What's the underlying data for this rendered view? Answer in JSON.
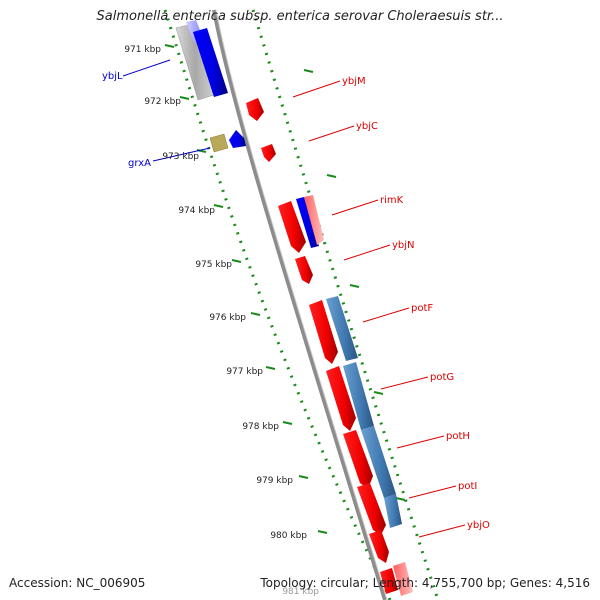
{
  "title": "Salmonella enterica subsp. enterica serovar Choleraesuis str...",
  "accession": "Accession: NC_006905",
  "summary": "Topology: circular; Length: 4,755,700 bp; Genes: 4,516",
  "colors": {
    "forward": "#ff0000",
    "reverse": "#0000ff",
    "feature": "#3f78b0",
    "backbone": "#8c8c8c",
    "ticks": "#1a8a1a",
    "other": "#b8a85a"
  },
  "scale": [
    {
      "label": "971 kbp",
      "kbp": 971
    },
    {
      "label": "972 kbp",
      "kbp": 972
    },
    {
      "label": "973 kbp",
      "kbp": 973
    },
    {
      "label": "974 kbp",
      "kbp": 974
    },
    {
      "label": "975 kbp",
      "kbp": 975
    },
    {
      "label": "976 kbp",
      "kbp": 976
    },
    {
      "label": "977 kbp",
      "kbp": 977
    },
    {
      "label": "978 kbp",
      "kbp": 978
    },
    {
      "label": "979 kbp",
      "kbp": 979
    },
    {
      "label": "980 kbp",
      "kbp": 980
    },
    {
      "label": "981 kbp",
      "kbp": 981
    }
  ],
  "genes": [
    {
      "label": "ybjL",
      "strand": "reverse"
    },
    {
      "label": "grxA",
      "strand": "reverse"
    },
    {
      "label": "ybjM",
      "strand": "forward"
    },
    {
      "label": "ybjC",
      "strand": "forward"
    },
    {
      "label": "rimK",
      "strand": "forward"
    },
    {
      "label": "ybjN",
      "strand": "forward"
    },
    {
      "label": "potF",
      "strand": "forward"
    },
    {
      "label": "potG",
      "strand": "forward"
    },
    {
      "label": "potH",
      "strand": "forward"
    },
    {
      "label": "potI",
      "strand": "forward"
    },
    {
      "label": "ybjO",
      "strand": "forward"
    }
  ]
}
